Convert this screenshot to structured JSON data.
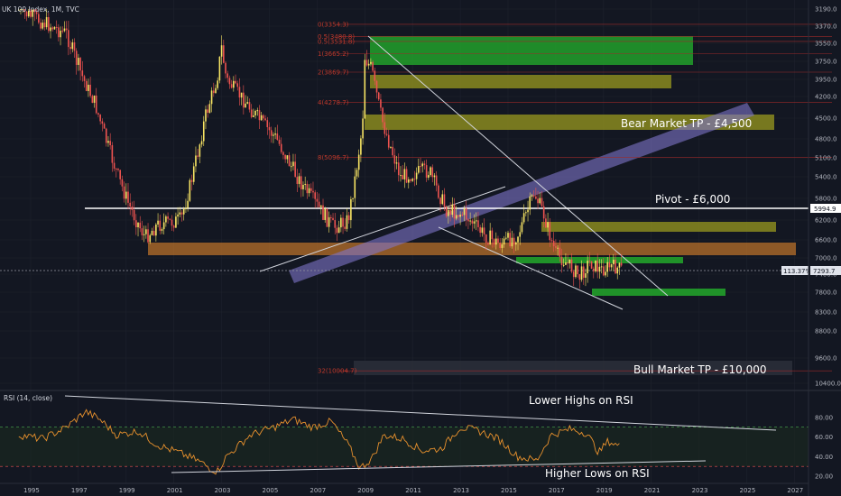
{
  "header": {
    "title": "UK 100 Index, 1M, TVC"
  },
  "colors": {
    "background": "#131722",
    "grid": "#1e222d",
    "candle_up": "#f7e463",
    "candle_down": "#ef5350",
    "pivot_line": "#ffffff",
    "zone_green": "#22a02a",
    "zone_olive": "#8a8a1e",
    "zone_orange": "#b8702a",
    "channel": "#7e75c9",
    "fib_line": "#9c2a2a",
    "rsi_line": "#e8912d",
    "rsi_band": "#2a6e2a"
  },
  "chart_data": [
    {
      "type": "line",
      "subtype": "candlestick",
      "title": "UK 100 Index, 1M, TVC",
      "y_scale": "inverted",
      "y_ticks": [
        "3190.0",
        "3370.0",
        "3550.0",
        "3750.0",
        "3950.0",
        "4200.0",
        "4500.0",
        "4800.0",
        "5100.0",
        "5400.0",
        "5800.0",
        "6200.0",
        "6600.0",
        "7000.0",
        "7400.0",
        "7800.0",
        "8300.0",
        "8800.0",
        "9600.0",
        "10400.0"
      ],
      "x_ticks": [
        "1995",
        "1997",
        "1999",
        "2001",
        "2003",
        "2005",
        "2007",
        "2009",
        "2011",
        "2013",
        "2015",
        "2017",
        "2019",
        "2021",
        "2023",
        "2025",
        "2027"
      ],
      "x_range": [
        1994.3,
        2027.8
      ],
      "series": [
        {
          "x": [
            1994.5,
            1996.5,
            1997.7,
            1999.1,
            1999.8,
            2000.3,
            2001.3,
            2002.3,
            2002.8,
            2003.0,
            2003.2,
            2004.4,
            2005.3,
            2006.3,
            2007.1,
            2007.7,
            2008.3,
            2008.9,
            2009.0,
            2009.3,
            2009.7,
            2010.5,
            2011.7,
            2012.4,
            2013.2,
            2014.0,
            2014.7,
            2015.4,
            2016.1,
            2016.5,
            2017.0,
            2017.6,
            2018.0,
            2018.4,
            2018.9,
            2019.3,
            2019.8
          ],
          "values": [
            3200,
            3450,
            4300,
            5900,
            6550,
            6300,
            6200,
            4500,
            3950,
            3600,
            3950,
            4450,
            4800,
            5500,
            6000,
            6350,
            6200,
            4600,
            3700,
            3850,
            4500,
            5400,
            5300,
            6000,
            6100,
            6500,
            6700,
            6500,
            5700,
            6100,
            6900,
            7200,
            7450,
            7100,
            7300,
            7200,
            7290
          ]
        }
      ],
      "fib_levels": [
        {
          "label": "0(3354.3)",
          "value": 3350
        },
        {
          "label": "0.5(3480.8)",
          "value": 3480
        },
        {
          "label": "0.5(3531.8)",
          "value": 3530
        },
        {
          "label": "1(3665.2)",
          "value": 3665
        },
        {
          "label": "2(3869.7)",
          "value": 3870
        },
        {
          "label": "4(4278.7)",
          "value": 4280
        },
        {
          "label": "8(5096.7)",
          "value": 5095
        },
        {
          "label": "32(10004.7)",
          "value": 10005
        }
      ],
      "pivot": {
        "label": "Pivot - £6,000",
        "value": 5994.9,
        "tag": "5994.9"
      },
      "current_price": {
        "value": 7293.7,
        "tag_pct": "113.37%",
        "tag_price": "7293.7"
      },
      "annotations": [
        "Bear Market TP - £4,500",
        "Pivot - £6,000",
        "Bull Market TP - £10,000"
      ]
    },
    {
      "type": "line",
      "title": "RSI (14, close)",
      "y_ticks": [
        "80.00",
        "60.00",
        "40.00",
        "20.00"
      ],
      "ylim": [
        20,
        90
      ],
      "bands": [
        70,
        30
      ],
      "series": [
        {
          "name": "RSI (14, close)",
          "x": [
            1994.5,
            1995.5,
            1996.5,
            1997.3,
            1997.9,
            1998.6,
            1999.5,
            2000.3,
            2001.2,
            2002.0,
            2002.8,
            2003.2,
            2004.2,
            2005.2,
            2006.0,
            2006.8,
            2007.6,
            2008.3,
            2008.8,
            2009.3,
            2009.8,
            2010.6,
            2011.4,
            2012.2,
            2013.0,
            2013.8,
            2014.6,
            2015.4,
            2016.2,
            2016.8,
            2017.6,
            2018.3,
            2018.8,
            2019.2,
            2019.7
          ],
          "values": [
            62,
            58,
            70,
            86,
            78,
            62,
            66,
            52,
            44,
            36,
            24,
            40,
            62,
            70,
            78,
            70,
            76,
            52,
            28,
            38,
            62,
            58,
            46,
            48,
            70,
            66,
            58,
            40,
            36,
            62,
            68,
            64,
            44,
            56,
            50
          ]
        }
      ],
      "annotations": [
        "Lower Highs on RSI",
        "Higher Lows on RSI"
      ]
    }
  ]
}
